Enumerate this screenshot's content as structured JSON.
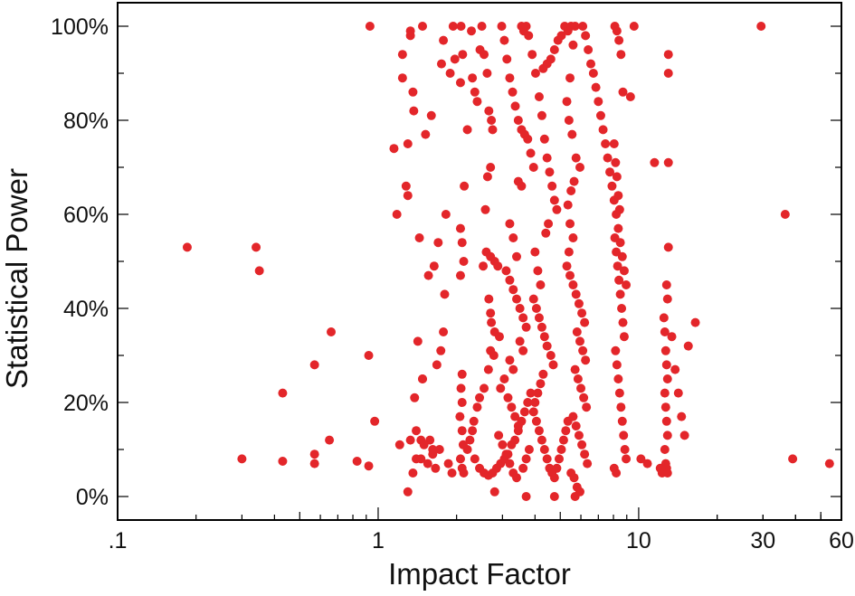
{
  "chart_data": {
    "type": "scatter",
    "xlabel": "Impact Factor",
    "ylabel": "Statistical Power",
    "x_scale": "log",
    "xlim": [
      0.1,
      60
    ],
    "ylim": [
      -5,
      105
    ],
    "x_ticks": [
      {
        "value": 0.1,
        "label": ".1"
      },
      {
        "value": 1,
        "label": "1"
      },
      {
        "value": 10,
        "label": "10"
      },
      {
        "value": 30,
        "label": "30"
      },
      {
        "value": 60,
        "label": "60"
      }
    ],
    "y_ticks": [
      {
        "value": 0,
        "label": "0%"
      },
      {
        "value": 20,
        "label": "20%"
      },
      {
        "value": 40,
        "label": "40%"
      },
      {
        "value": 60,
        "label": "60%"
      },
      {
        "value": 80,
        "label": "80%"
      },
      {
        "value": 100,
        "label": "100%"
      }
    ],
    "grid": false,
    "marker_color": "#e3262a",
    "points": [
      [
        0.185,
        53
      ],
      [
        0.3,
        8
      ],
      [
        0.34,
        53
      ],
      [
        0.35,
        48
      ],
      [
        0.43,
        22
      ],
      [
        0.43,
        7.5
      ],
      [
        0.57,
        28
      ],
      [
        0.57,
        7
      ],
      [
        0.57,
        9
      ],
      [
        0.66,
        35
      ],
      [
        0.65,
        12
      ],
      [
        0.83,
        7.5
      ],
      [
        0.92,
        30
      ],
      [
        0.92,
        6.5
      ],
      [
        0.93,
        100
      ],
      [
        0.97,
        16
      ],
      [
        1.15,
        74
      ],
      [
        1.18,
        60
      ],
      [
        1.21,
        11
      ],
      [
        1.24,
        89
      ],
      [
        1.24,
        94
      ],
      [
        1.3,
        75
      ],
      [
        1.28,
        66
      ],
      [
        1.3,
        64
      ],
      [
        1.33,
        98
      ],
      [
        1.33,
        99
      ],
      [
        1.36,
        86
      ],
      [
        1.37,
        82
      ],
      [
        1.4,
        8
      ],
      [
        1.4,
        14
      ],
      [
        1.46,
        8
      ],
      [
        1.46,
        12
      ],
      [
        1.48,
        100
      ],
      [
        1.52,
        77
      ],
      [
        1.56,
        47
      ],
      [
        1.6,
        81
      ],
      [
        1.64,
        49
      ],
      [
        1.7,
        54
      ],
      [
        1.75,
        92
      ],
      [
        1.78,
        97
      ],
      [
        1.82,
        60
      ],
      [
        1.89,
        90
      ],
      [
        1.94,
        100
      ],
      [
        1.97,
        93
      ],
      [
        1.3,
        1
      ],
      [
        1.42,
        33
      ],
      [
        1.48,
        25
      ],
      [
        1.58,
        12
      ],
      [
        1.62,
        9
      ],
      [
        1.68,
        28
      ],
      [
        1.72,
        10
      ],
      [
        1.33,
        12
      ],
      [
        1.36,
        5
      ],
      [
        1.55,
        7
      ],
      [
        1.66,
        6
      ],
      [
        1.74,
        31
      ],
      [
        1.8,
        43
      ],
      [
        1.86,
        7
      ],
      [
        1.92,
        5
      ],
      [
        1.5,
        11
      ],
      [
        1.44,
        55
      ],
      [
        1.38,
        21
      ],
      [
        1.62,
        10
      ],
      [
        1.78,
        35
      ],
      [
        1.48,
        25
      ],
      [
        2.07,
        57
      ],
      [
        2.1,
        54
      ],
      [
        2.13,
        50
      ],
      [
        2.07,
        47
      ],
      [
        2.1,
        26
      ],
      [
        2.08,
        23
      ],
      [
        2.1,
        20
      ],
      [
        2.06,
        17
      ],
      [
        2.1,
        14
      ],
      [
        2.12,
        11
      ],
      [
        2.07,
        8
      ],
      [
        2.1,
        6
      ],
      [
        2.13,
        5
      ],
      [
        2.08,
        100
      ],
      [
        2.11,
        94
      ],
      [
        2.07,
        88
      ],
      [
        2.14,
        66
      ],
      [
        2.2,
        78
      ],
      [
        2.28,
        99
      ],
      [
        2.3,
        89
      ],
      [
        2.35,
        86
      ],
      [
        2.4,
        84
      ],
      [
        2.46,
        95
      ],
      [
        2.5,
        100
      ],
      [
        2.55,
        94
      ],
      [
        2.62,
        90
      ],
      [
        2.66,
        82
      ],
      [
        2.72,
        80
      ],
      [
        2.75,
        78
      ],
      [
        2.7,
        70
      ],
      [
        2.63,
        68
      ],
      [
        2.58,
        61
      ],
      [
        2.53,
        49
      ],
      [
        2.6,
        52
      ],
      [
        2.7,
        51
      ],
      [
        2.8,
        50
      ],
      [
        2.88,
        49
      ],
      [
        2.66,
        42
      ],
      [
        2.7,
        39
      ],
      [
        2.72,
        37
      ],
      [
        2.8,
        35
      ],
      [
        2.92,
        34
      ],
      [
        2.7,
        31
      ],
      [
        2.78,
        30
      ],
      [
        2.65,
        27
      ],
      [
        2.55,
        23
      ],
      [
        2.45,
        21
      ],
      [
        2.4,
        19
      ],
      [
        2.33,
        16
      ],
      [
        2.3,
        14
      ],
      [
        2.25,
        12
      ],
      [
        2.2,
        10
      ],
      [
        2.35,
        8
      ],
      [
        2.45,
        6
      ],
      [
        2.55,
        5
      ],
      [
        2.65,
        4.5
      ],
      [
        2.75,
        5
      ],
      [
        2.85,
        6
      ],
      [
        2.95,
        7
      ],
      [
        3.05,
        8
      ],
      [
        3.15,
        9
      ],
      [
        3.25,
        11
      ],
      [
        3.35,
        12
      ],
      [
        3.45,
        14
      ],
      [
        3.55,
        16
      ],
      [
        3.65,
        18
      ],
      [
        3.75,
        20
      ],
      [
        3.85,
        22
      ],
      [
        2.98,
        100
      ],
      [
        3.05,
        97
      ],
      [
        3.12,
        93
      ],
      [
        3.2,
        89
      ],
      [
        3.28,
        86
      ],
      [
        3.36,
        83
      ],
      [
        3.45,
        80
      ],
      [
        3.55,
        78
      ],
      [
        3.65,
        77
      ],
      [
        3.75,
        76
      ],
      [
        3.85,
        73
      ],
      [
        3.95,
        70
      ],
      [
        3.45,
        67
      ],
      [
        3.55,
        66
      ],
      [
        3.2,
        58
      ],
      [
        3.3,
        55
      ],
      [
        3.4,
        51
      ],
      [
        3.1,
        48
      ],
      [
        3.2,
        46
      ],
      [
        3.3,
        44
      ],
      [
        3.4,
        42
      ],
      [
        3.5,
        40
      ],
      [
        3.6,
        38
      ],
      [
        3.7,
        36
      ],
      [
        3.5,
        33
      ],
      [
        3.6,
        31
      ],
      [
        3.2,
        29
      ],
      [
        3.3,
        27
      ],
      [
        3.05,
        25
      ],
      [
        2.95,
        23
      ],
      [
        3.15,
        21
      ],
      [
        3.25,
        19
      ],
      [
        3.35,
        17
      ],
      [
        3.45,
        15
      ],
      [
        2.9,
        13
      ],
      [
        3.0,
        11
      ],
      [
        3.1,
        9
      ],
      [
        3.2,
        7
      ],
      [
        3.3,
        5
      ],
      [
        3.4,
        4
      ],
      [
        3.6,
        6
      ],
      [
        3.7,
        8
      ],
      [
        3.8,
        10
      ],
      [
        3.55,
        100
      ],
      [
        3.62,
        99
      ],
      [
        3.7,
        100
      ],
      [
        3.78,
        98
      ],
      [
        3.9,
        94
      ],
      [
        4.02,
        90
      ],
      [
        4.15,
        85
      ],
      [
        4.25,
        81
      ],
      [
        4.35,
        76
      ],
      [
        4.45,
        72
      ],
      [
        4.55,
        69
      ],
      [
        4.65,
        66
      ],
      [
        4.75,
        63
      ],
      [
        4.85,
        61
      ],
      [
        4.5,
        58
      ],
      [
        4.4,
        56
      ],
      [
        4.0,
        52
      ],
      [
        4.1,
        48
      ],
      [
        4.2,
        45
      ],
      [
        3.95,
        42
      ],
      [
        4.05,
        40
      ],
      [
        4.15,
        38
      ],
      [
        4.25,
        36
      ],
      [
        4.35,
        34
      ],
      [
        4.45,
        32
      ],
      [
        4.6,
        30
      ],
      [
        4.7,
        28
      ],
      [
        4.3,
        26
      ],
      [
        4.2,
        24
      ],
      [
        4.1,
        22
      ],
      [
        4.0,
        20
      ],
      [
        3.95,
        18
      ],
      [
        4.05,
        16
      ],
      [
        4.15,
        14
      ],
      [
        4.25,
        12
      ],
      [
        4.35,
        10
      ],
      [
        4.45,
        8
      ],
      [
        4.55,
        6
      ],
      [
        4.65,
        5
      ],
      [
        4.75,
        4
      ],
      [
        4.85,
        6
      ],
      [
        4.95,
        8
      ],
      [
        5.05,
        10
      ],
      [
        5.15,
        12
      ],
      [
        5.25,
        14
      ],
      [
        5.35,
        16
      ],
      [
        4.3,
        91
      ],
      [
        4.45,
        92
      ],
      [
        4.6,
        93
      ],
      [
        4.75,
        95
      ],
      [
        4.9,
        97
      ],
      [
        5.05,
        98
      ],
      [
        5.2,
        100
      ],
      [
        5.35,
        99
      ],
      [
        5.5,
        100
      ],
      [
        5.7,
        100
      ],
      [
        5.6,
        96
      ],
      [
        5.45,
        89
      ],
      [
        5.3,
        84
      ],
      [
        5.4,
        80
      ],
      [
        5.55,
        77
      ],
      [
        5.75,
        72
      ],
      [
        5.95,
        70
      ],
      [
        5.65,
        67
      ],
      [
        5.5,
        65
      ],
      [
        5.35,
        62
      ],
      [
        5.45,
        58
      ],
      [
        5.6,
        55
      ],
      [
        5.4,
        52
      ],
      [
        5.3,
        49
      ],
      [
        5.45,
        47
      ],
      [
        5.6,
        45
      ],
      [
        5.75,
        43
      ],
      [
        5.9,
        41
      ],
      [
        6.05,
        39
      ],
      [
        6.2,
        37
      ],
      [
        5.8,
        35
      ],
      [
        5.95,
        33
      ],
      [
        6.1,
        31
      ],
      [
        6.25,
        29
      ],
      [
        5.7,
        27
      ],
      [
        5.85,
        25
      ],
      [
        6.0,
        23
      ],
      [
        6.15,
        21
      ],
      [
        6.3,
        19
      ],
      [
        5.6,
        17
      ],
      [
        5.75,
        15
      ],
      [
        5.9,
        13
      ],
      [
        6.05,
        11
      ],
      [
        6.2,
        9
      ],
      [
        6.35,
        7
      ],
      [
        5.5,
        5
      ],
      [
        5.65,
        4
      ],
      [
        5.8,
        2
      ],
      [
        5.95,
        1
      ],
      [
        5.7,
        0
      ],
      [
        4.75,
        0
      ],
      [
        3.7,
        0
      ],
      [
        2.8,
        1
      ],
      [
        6.1,
        100
      ],
      [
        6.25,
        98
      ],
      [
        6.4,
        95
      ],
      [
        6.55,
        92
      ],
      [
        6.7,
        90
      ],
      [
        6.85,
        87
      ],
      [
        7.0,
        84
      ],
      [
        7.15,
        81
      ],
      [
        7.3,
        78
      ],
      [
        7.45,
        75
      ],
      [
        7.6,
        72
      ],
      [
        7.75,
        69
      ],
      [
        7.9,
        66
      ],
      [
        8.05,
        63
      ],
      [
        8.2,
        60
      ],
      [
        8.35,
        57
      ],
      [
        8.5,
        54
      ],
      [
        8.65,
        51
      ],
      [
        8.8,
        48
      ],
      [
        8.95,
        45
      ],
      [
        8.1,
        100
      ],
      [
        8.25,
        99
      ],
      [
        8.4,
        97
      ],
      [
        8.55,
        94
      ],
      [
        8.7,
        86
      ],
      [
        8.05,
        75
      ],
      [
        8.15,
        71
      ],
      [
        8.25,
        68
      ],
      [
        8.35,
        64
      ],
      [
        8.45,
        61
      ],
      [
        8.1,
        55
      ],
      [
        8.2,
        52
      ],
      [
        8.3,
        49
      ],
      [
        8.4,
        46
      ],
      [
        8.5,
        43
      ],
      [
        8.6,
        40
      ],
      [
        8.7,
        37
      ],
      [
        8.8,
        34
      ],
      [
        8.15,
        31
      ],
      [
        8.25,
        28
      ],
      [
        8.35,
        25
      ],
      [
        8.45,
        22
      ],
      [
        8.55,
        19
      ],
      [
        8.65,
        16
      ],
      [
        8.75,
        13
      ],
      [
        8.85,
        10
      ],
      [
        8.95,
        8
      ],
      [
        8.05,
        6
      ],
      [
        8.2,
        5
      ],
      [
        9.3,
        85
      ],
      [
        9.6,
        100
      ],
      [
        10.2,
        8
      ],
      [
        10.8,
        7
      ],
      [
        11.5,
        71
      ],
      [
        12.1,
        6
      ],
      [
        12.3,
        5
      ],
      [
        12.5,
        38
      ],
      [
        12.6,
        35
      ],
      [
        12.7,
        31
      ],
      [
        12.8,
        28
      ],
      [
        12.9,
        25
      ],
      [
        12.6,
        22
      ],
      [
        12.7,
        19
      ],
      [
        12.8,
        16
      ],
      [
        12.9,
        13
      ],
      [
        12.6,
        10
      ],
      [
        12.7,
        7
      ],
      [
        12.8,
        6
      ],
      [
        12.9,
        5
      ],
      [
        12.8,
        45
      ],
      [
        12.9,
        42
      ],
      [
        13.0,
        53
      ],
      [
        13.0,
        71
      ],
      [
        13.0,
        90
      ],
      [
        13.0,
        94
      ],
      [
        13.4,
        34
      ],
      [
        13.8,
        27
      ],
      [
        14.2,
        22
      ],
      [
        14.6,
        17
      ],
      [
        15.0,
        13
      ],
      [
        15.5,
        32
      ],
      [
        16.5,
        37
      ],
      [
        29.5,
        100
      ],
      [
        36.5,
        60
      ],
      [
        39.0,
        8
      ],
      [
        54.0,
        7
      ]
    ]
  }
}
